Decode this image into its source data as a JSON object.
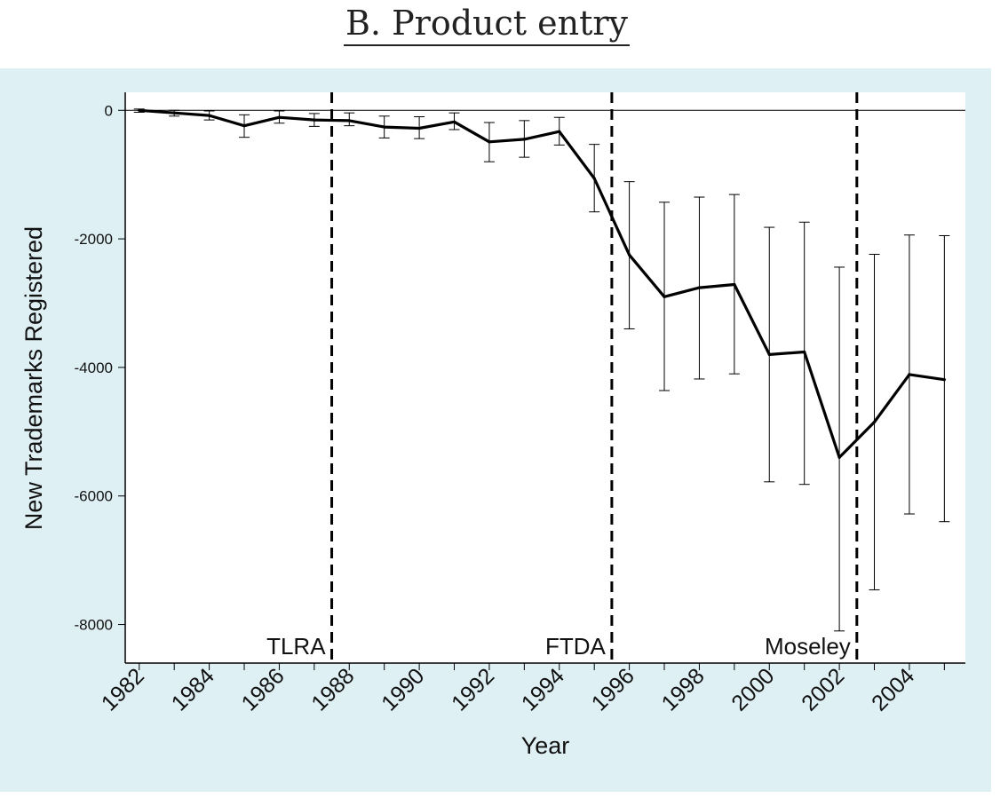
{
  "title": "B. Product entry",
  "chart_data": {
    "type": "line",
    "title": "B. Product entry",
    "xlabel": "Year",
    "ylabel": "New Trademarks Registered",
    "xlim": [
      1981.6,
      2005.6
    ],
    "ylim": [
      -8600,
      280
    ],
    "x_ticks": [
      1982,
      1983,
      1984,
      1985,
      1986,
      1987,
      1988,
      1989,
      1990,
      1991,
      1992,
      1993,
      1994,
      1995,
      1996,
      1997,
      1998,
      1999,
      2000,
      2001,
      2002,
      2003,
      2004,
      2005
    ],
    "x_tick_labels": [
      "1982",
      "1984",
      "1986",
      "1988",
      "1990",
      "1992",
      "1994",
      "1996",
      "1998",
      "2000",
      "2002",
      "2004"
    ],
    "y_ticks": [
      0,
      -2000,
      -4000,
      -6000,
      -8000
    ],
    "y_tick_labels": [
      "0",
      "-2000",
      "-4000",
      "-6000",
      "-8000"
    ],
    "grid": false,
    "reference_line_y": 0,
    "series": [
      {
        "x": [
          1982,
          1983,
          1984,
          1985,
          1986,
          1987,
          1988,
          1989,
          1990,
          1991,
          1992,
          1993,
          1994,
          1995,
          1996,
          1997,
          1998,
          1999,
          2000,
          2001,
          2002,
          2003,
          2004,
          2005
        ],
        "y": [
          0,
          -40,
          -80,
          -240,
          -110,
          -150,
          -160,
          -260,
          -280,
          -180,
          -490,
          -450,
          -330,
          -1060,
          -2250,
          -2900,
          -2760,
          -2710,
          -3800,
          -3760,
          -5400,
          -4850,
          -4110,
          -4190
        ],
        "ci_low": [
          -30,
          -90,
          -150,
          -420,
          -200,
          -250,
          -240,
          -430,
          -440,
          -300,
          -800,
          -730,
          -540,
          -1580,
          -3400,
          -4360,
          -4180,
          -4100,
          -5780,
          -5820,
          -8100,
          -7460,
          -6280,
          -6400
        ],
        "ci_high": [
          20,
          0,
          -10,
          -70,
          -10,
          -50,
          -40,
          -90,
          -100,
          -40,
          -190,
          -160,
          -110,
          -530,
          -1110,
          -1430,
          -1350,
          -1310,
          -1820,
          -1740,
          -2440,
          -2240,
          -1940,
          -1950
        ]
      }
    ],
    "vertical_lines": [
      {
        "x": 1987.5,
        "label": "TLRA"
      },
      {
        "x": 1995.5,
        "label": "FTDA"
      },
      {
        "x": 2002.5,
        "label": "Moseley"
      }
    ]
  }
}
